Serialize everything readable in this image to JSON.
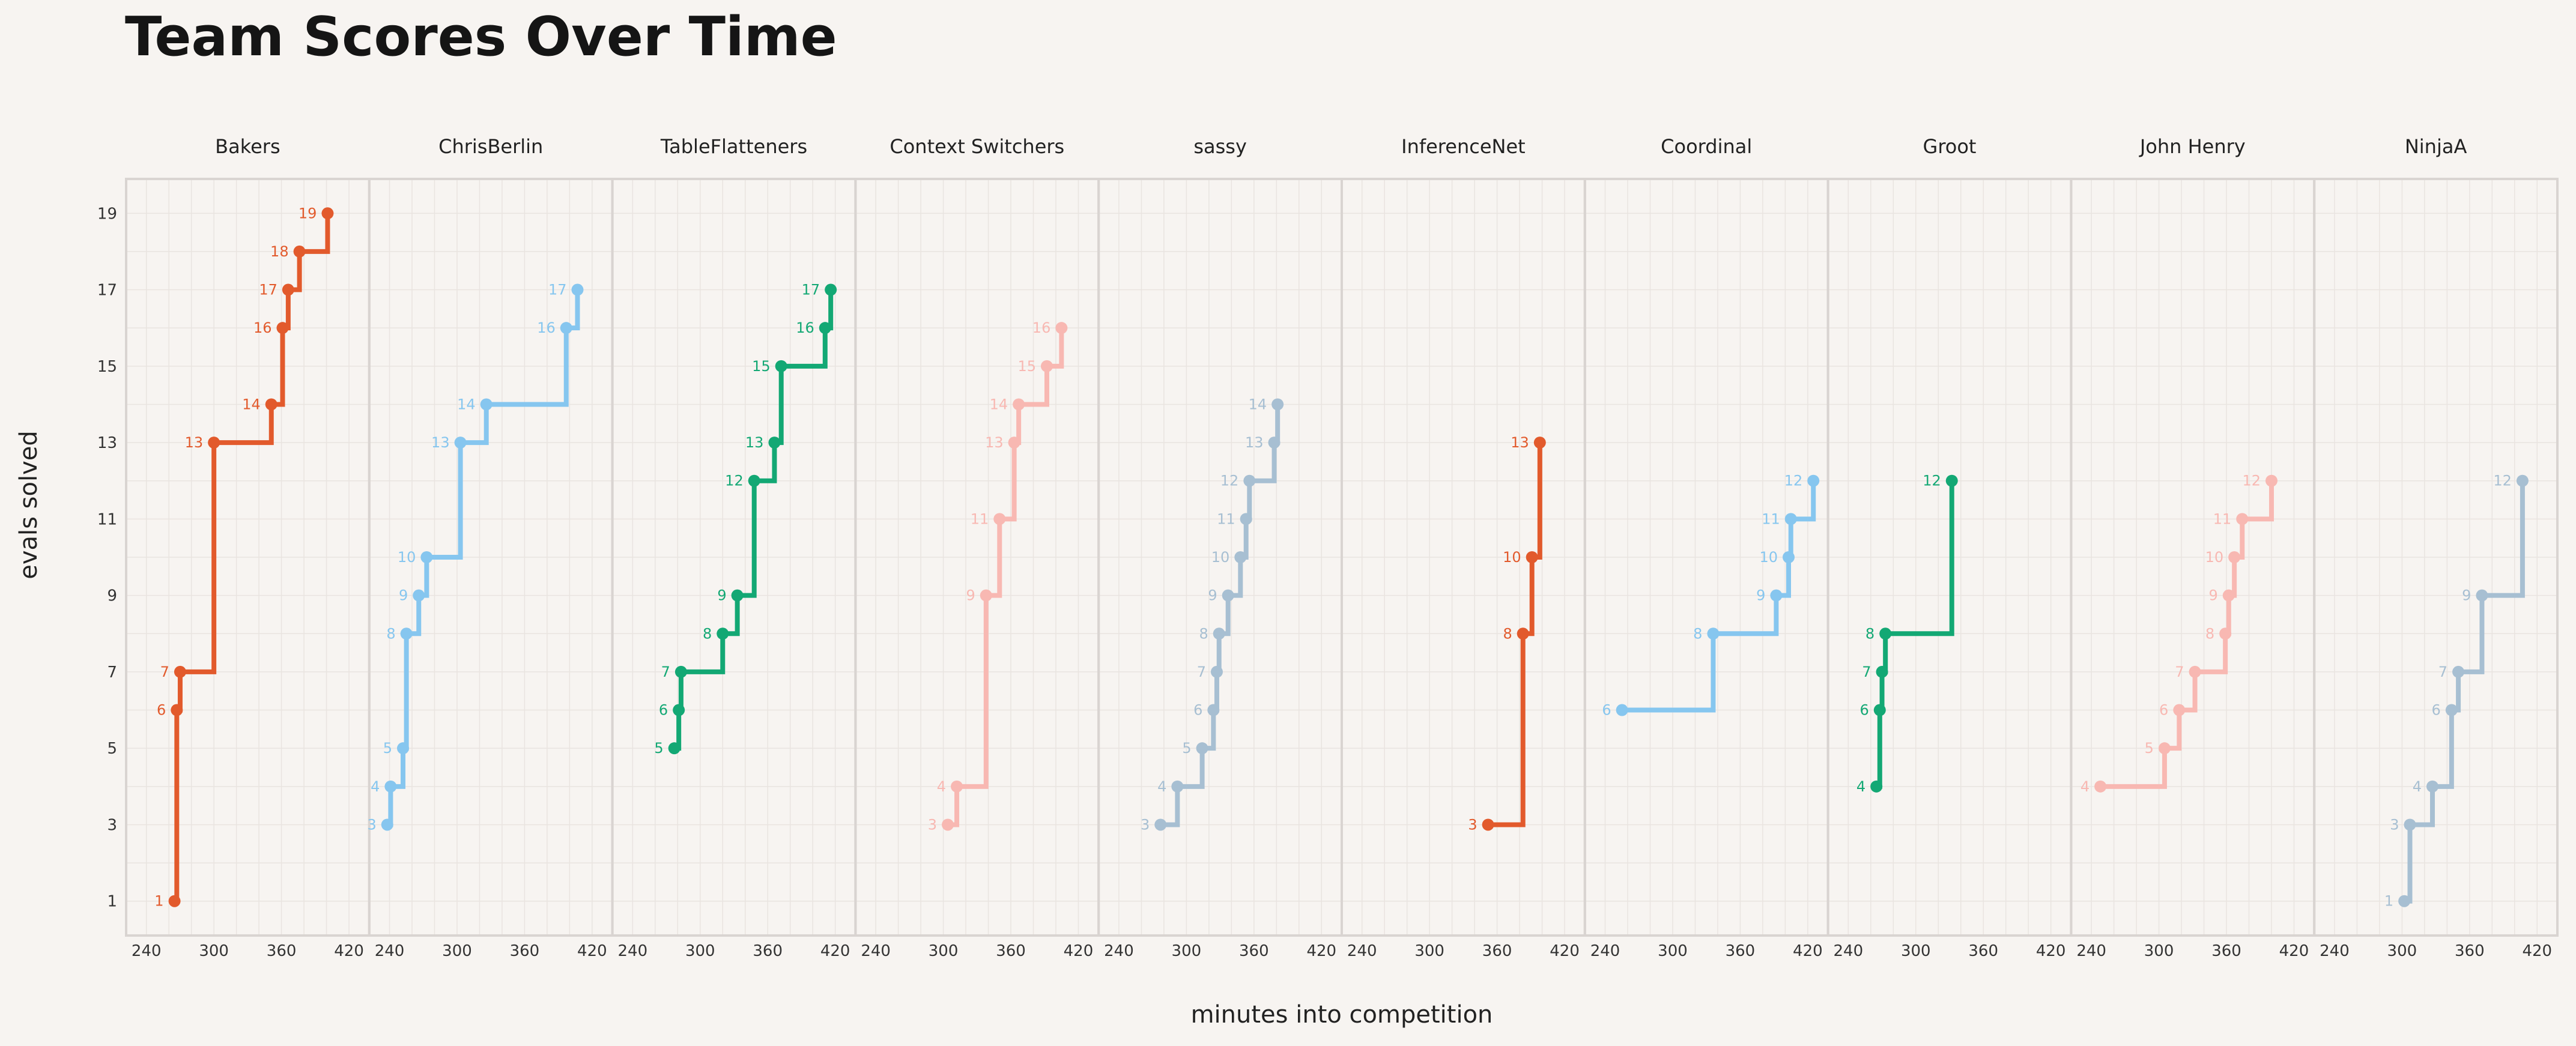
{
  "chart_data": {
    "type": "line",
    "subtype": "step-small-multiples",
    "title": "Team Scores Over Time",
    "xlabel": "minutes into competition",
    "ylabel": "evals solved",
    "xlim": [
      222,
      438
    ],
    "ylim": [
      0.1,
      19.9
    ],
    "xticks": [
      240,
      300,
      360,
      420
    ],
    "yticks": [
      1,
      3,
      5,
      7,
      9,
      11,
      13,
      15,
      17,
      19
    ],
    "grid": true,
    "panels": [
      {
        "name": "Bakers",
        "color": "#e25a2c",
        "points": [
          [
            265,
            1
          ],
          [
            267,
            6
          ],
          [
            270,
            7
          ],
          [
            300,
            13
          ],
          [
            351,
            14
          ],
          [
            361,
            16
          ],
          [
            366,
            17
          ],
          [
            376,
            18
          ],
          [
            401,
            19
          ]
        ]
      },
      {
        "name": "ChrisBerlin",
        "color": "#86c6ef",
        "points": [
          [
            238,
            3
          ],
          [
            241,
            4
          ],
          [
            252,
            5
          ],
          [
            255,
            8
          ],
          [
            266,
            9
          ],
          [
            273,
            10
          ],
          [
            303,
            13
          ],
          [
            326,
            14
          ],
          [
            397,
            16
          ],
          [
            407,
            17
          ]
        ]
      },
      {
        "name": "TableFlatteners",
        "color": "#13a874",
        "points": [
          [
            277,
            5
          ],
          [
            281,
            6
          ],
          [
            283,
            7
          ],
          [
            320,
            8
          ],
          [
            333,
            9
          ],
          [
            348,
            12
          ],
          [
            366,
            13
          ],
          [
            372,
            15
          ],
          [
            411,
            16
          ],
          [
            416,
            17
          ]
        ]
      },
      {
        "name": "Context Switchers",
        "color": "#f8b8b2",
        "points": [
          [
            304,
            3
          ],
          [
            312,
            4
          ],
          [
            338,
            9
          ],
          [
            350,
            11
          ],
          [
            363,
            13
          ],
          [
            367,
            14
          ],
          [
            392,
            15
          ],
          [
            405,
            16
          ]
        ]
      },
      {
        "name": "sassy",
        "color": "#a7bfd2",
        "points": [
          [
            277,
            3
          ],
          [
            292,
            4
          ],
          [
            314,
            5
          ],
          [
            324,
            6
          ],
          [
            327,
            7
          ],
          [
            329,
            8
          ],
          [
            337,
            9
          ],
          [
            348,
            10
          ],
          [
            353,
            11
          ],
          [
            356,
            12
          ],
          [
            378,
            13
          ],
          [
            381,
            14
          ]
        ]
      },
      {
        "name": "InferenceNet",
        "color": "#e25a2c",
        "points": [
          [
            352,
            3
          ],
          [
            383,
            8
          ],
          [
            391,
            10
          ],
          [
            398,
            13
          ]
        ]
      },
      {
        "name": "Coordinal",
        "color": "#86c6ef",
        "points": [
          [
            255,
            6
          ],
          [
            336,
            8
          ],
          [
            392,
            9
          ],
          [
            403,
            10
          ],
          [
            405,
            11
          ],
          [
            425,
            12
          ]
        ]
      },
      {
        "name": "Groot",
        "color": "#13a874",
        "points": [
          [
            265,
            4
          ],
          [
            268,
            6
          ],
          [
            270,
            7
          ],
          [
            273,
            8
          ],
          [
            332,
            12
          ]
        ]
      },
      {
        "name": "John Henry",
        "color": "#f8b8b2",
        "points": [
          [
            248,
            4
          ],
          [
            305,
            5
          ],
          [
            318,
            6
          ],
          [
            332,
            7
          ],
          [
            359,
            8
          ],
          [
            362,
            9
          ],
          [
            367,
            10
          ],
          [
            374,
            11
          ],
          [
            400,
            12
          ]
        ]
      },
      {
        "name": "NinjaA",
        "color": "#a7bfd2",
        "points": [
          [
            302,
            1
          ],
          [
            307,
            3
          ],
          [
            327,
            4
          ],
          [
            344,
            6
          ],
          [
            350,
            7
          ],
          [
            371,
            9
          ],
          [
            407,
            12
          ]
        ]
      }
    ]
  },
  "colors": {
    "background": "#f7f4f1",
    "grid": "#e9e4e0",
    "frame": "#d9d4d1"
  }
}
